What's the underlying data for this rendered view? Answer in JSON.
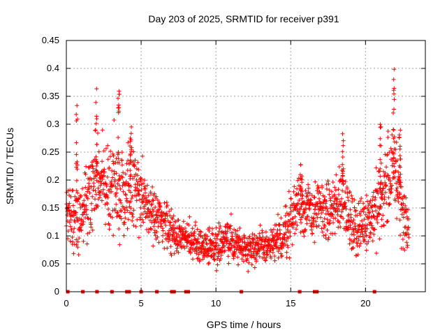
{
  "chart_data": {
    "type": "scatter",
    "title": "Day 203 of 2025, SRMTID for receiver p391",
    "xlabel": "GPS time / hours",
    "ylabel": "SRMTID / TECUs",
    "xlim": [
      0,
      24
    ],
    "ylim": [
      0,
      0.45
    ],
    "x_ticks": [
      0,
      5,
      10,
      15,
      20
    ],
    "x_tick_labels": [
      "0",
      "5",
      "10",
      "15",
      "20"
    ],
    "y_ticks": [
      0,
      0.05,
      0.1,
      0.15,
      0.2,
      0.25,
      0.3,
      0.35,
      0.4,
      0.45
    ],
    "y_tick_labels": [
      "0",
      "0.05",
      "0.1",
      "0.15",
      "0.2",
      "0.25",
      "0.3",
      "0.35",
      "0.4",
      "0.45"
    ],
    "grid": true,
    "marker_color": "#ff0000",
    "series": [
      {
        "name": "SRMTID",
        "marker": "plus",
        "profile_hours": [
          0.0,
          0.5,
          1.0,
          1.5,
          2.0,
          2.5,
          3.0,
          3.5,
          4.0,
          4.5,
          5.0,
          5.5,
          6.0,
          6.5,
          7.0,
          7.5,
          8.0,
          8.5,
          9.0,
          9.5,
          10.0,
          10.5,
          11.0,
          11.5,
          12.0,
          12.5,
          13.0,
          13.5,
          14.0,
          14.5,
          15.0,
          15.5,
          16.0,
          16.5,
          17.0,
          17.5,
          18.0,
          18.5,
          19.0,
          19.5,
          20.0,
          20.5,
          21.0,
          21.5,
          22.0,
          22.5,
          23.0
        ],
        "profile_median": [
          0.15,
          0.13,
          0.14,
          0.17,
          0.19,
          0.21,
          0.18,
          0.18,
          0.19,
          0.19,
          0.17,
          0.15,
          0.13,
          0.12,
          0.11,
          0.1,
          0.095,
          0.09,
          0.085,
          0.08,
          0.085,
          0.09,
          0.09,
          0.085,
          0.08,
          0.08,
          0.08,
          0.08,
          0.085,
          0.1,
          0.13,
          0.16,
          0.15,
          0.14,
          0.15,
          0.14,
          0.15,
          0.18,
          0.12,
          0.11,
          0.13,
          0.14,
          0.16,
          0.2,
          0.22,
          0.14,
          0.1
        ],
        "profile_spread": [
          0.05,
          0.05,
          0.06,
          0.06,
          0.07,
          0.06,
          0.07,
          0.07,
          0.06,
          0.06,
          0.05,
          0.04,
          0.04,
          0.03,
          0.03,
          0.03,
          0.025,
          0.025,
          0.025,
          0.025,
          0.03,
          0.03,
          0.03,
          0.025,
          0.025,
          0.025,
          0.025,
          0.025,
          0.03,
          0.04,
          0.04,
          0.05,
          0.04,
          0.04,
          0.04,
          0.04,
          0.05,
          0.05,
          0.04,
          0.04,
          0.04,
          0.05,
          0.06,
          0.07,
          0.07,
          0.05,
          0.03
        ],
        "peaks": [
          {
            "x": 0.7,
            "y": 0.34
          },
          {
            "x": 2.0,
            "y": 0.365
          },
          {
            "x": 3.5,
            "y": 0.36
          },
          {
            "x": 4.3,
            "y": 0.3
          },
          {
            "x": 15.7,
            "y": 0.23
          },
          {
            "x": 18.5,
            "y": 0.3
          },
          {
            "x": 21.0,
            "y": 0.31
          },
          {
            "x": 21.9,
            "y": 0.41
          },
          {
            "x": 22.3,
            "y": 0.29
          }
        ],
        "zero_values_x": [
          0.1,
          1.1,
          2.05,
          3.05,
          4.05,
          4.2,
          5.0,
          6.05,
          7.05,
          7.2,
          8.0,
          8.15,
          11.7,
          15.6,
          16.6,
          16.75,
          20.6
        ]
      }
    ]
  }
}
